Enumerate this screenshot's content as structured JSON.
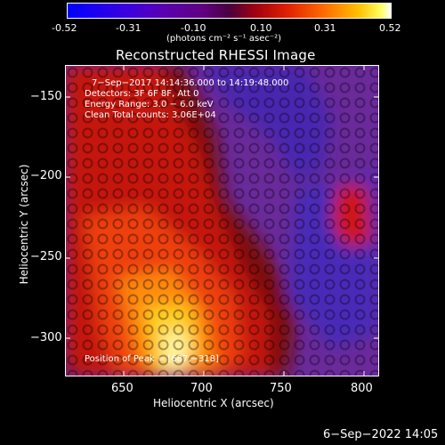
{
  "colorbar": {
    "ticks": [
      "-0.52",
      "-0.31",
      "-0.10",
      "0.10",
      "0.31",
      "0.52"
    ],
    "units": "(photons cm⁻² s⁻¹ asec⁻²)"
  },
  "plot": {
    "title": "Reconstructed RHESSI Image",
    "xlabel": "Heliocentric X (arcsec)",
    "ylabel": "Heliocentric Y (arcsec)",
    "xticks": [
      "650",
      "700",
      "750",
      "800"
    ],
    "yticks": [
      "−150",
      "−200",
      "−250",
      "−300"
    ],
    "info": {
      "time": "7−Sep−2017 14:14:36.000 to 14:19:48.000",
      "detectors": "Detectors: 3F 6F 8F, Att 0",
      "energy": "Energy Range: 3.0 − 6.0 keV",
      "clean": "Clean     Total counts: 3.06E+04"
    },
    "peak": "Position of Peak = [687,−318]"
  },
  "footer": {
    "timestamp": "6−Sep−2022 14:05"
  },
  "colors": {
    "accent": "#ffff00",
    "background": "#000000"
  }
}
